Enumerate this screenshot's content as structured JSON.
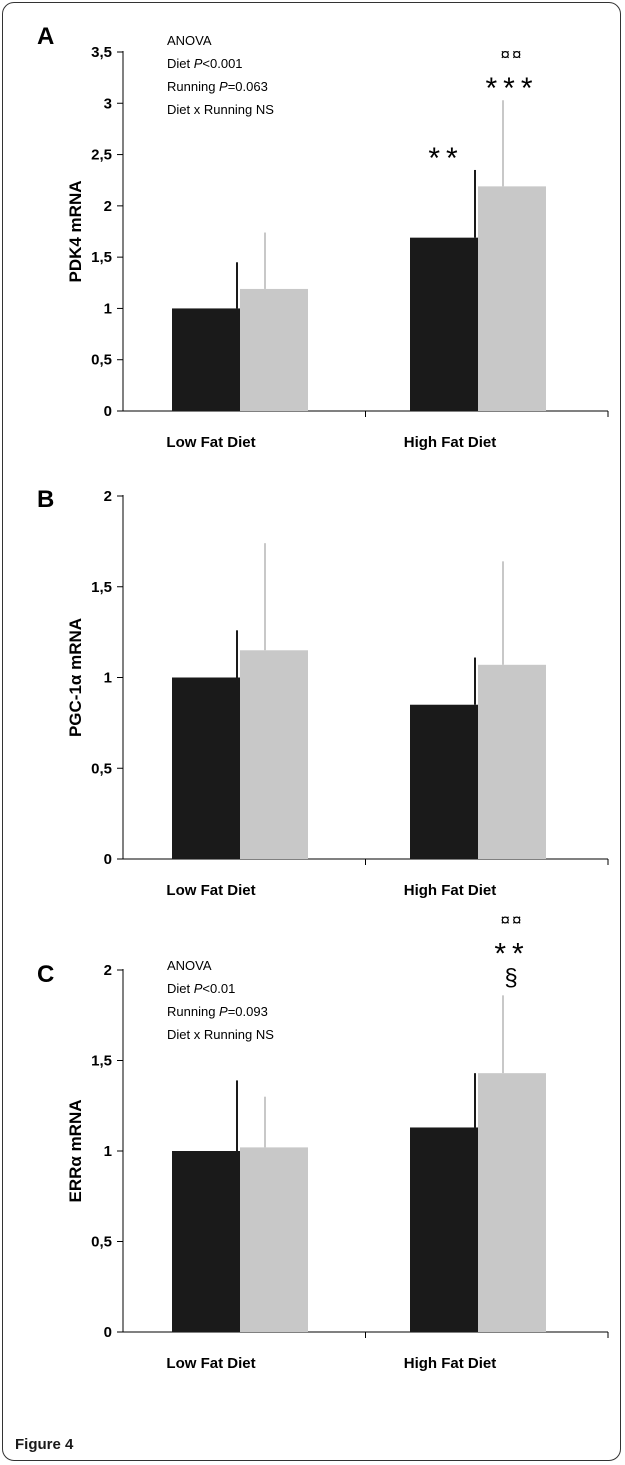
{
  "figure": {
    "caption": "Figure 4",
    "colors": {
      "sedentary_bar": "#1a1a1a",
      "running_bar": "#c8c8c8",
      "axis": "#000000"
    }
  },
  "chart_data": [
    {
      "type": "bar",
      "panel_label": "A",
      "ylabel": "PDK4 mRNA",
      "categories": [
        "Low Fat Diet",
        "High Fat Diet"
      ],
      "ylim": [
        0,
        3.5
      ],
      "yticks": [
        "0",
        "0,5",
        "1",
        "1,5",
        "2",
        "2,5",
        "3",
        "3,5"
      ],
      "series": [
        {
          "color": "#1a1a1a",
          "values": [
            1.0,
            1.69
          ],
          "errors": [
            0.45,
            0.66
          ]
        },
        {
          "color": "#c8c8c8",
          "values": [
            1.19,
            2.19
          ],
          "errors": [
            0.55,
            0.84
          ]
        }
      ],
      "annotation": [
        "ANOVA",
        "Diet P<0.001",
        "Running P=0.063",
        "Diet x Running NS"
      ],
      "significance": [
        {
          "category": 1,
          "series": 0,
          "marks": [
            "**"
          ]
        },
        {
          "category": 1,
          "series": 1,
          "marks": [
            "¤¤",
            "***"
          ]
        }
      ]
    },
    {
      "type": "bar",
      "panel_label": "B",
      "ylabel": "PGC-1α mRNA",
      "categories": [
        "Low Fat Diet",
        "High Fat Diet"
      ],
      "ylim": [
        0,
        2
      ],
      "yticks": [
        "0",
        "0,5",
        "1",
        "1,5",
        "2"
      ],
      "series": [
        {
          "color": "#1a1a1a",
          "values": [
            1.0,
            0.85
          ],
          "errors": [
            0.26,
            0.26
          ]
        },
        {
          "color": "#c8c8c8",
          "values": [
            1.15,
            1.07
          ],
          "errors": [
            0.59,
            0.57
          ]
        }
      ],
      "annotation": [],
      "significance": []
    },
    {
      "type": "bar",
      "panel_label": "C",
      "ylabel": "ERRα mRNA",
      "categories": [
        "Low Fat Diet",
        "High Fat Diet"
      ],
      "ylim": [
        0,
        2
      ],
      "yticks": [
        "0",
        "0,5",
        "1",
        "1,5",
        "2"
      ],
      "series": [
        {
          "color": "#1a1a1a",
          "values": [
            1.0,
            1.13
          ],
          "errors": [
            0.39,
            0.3
          ]
        },
        {
          "color": "#c8c8c8",
          "values": [
            1.02,
            1.43
          ],
          "errors": [
            0.28,
            0.43
          ]
        }
      ],
      "annotation": [
        "ANOVA",
        "Diet P<0.01",
        "Running P=0.093",
        "Diet x Running NS"
      ],
      "significance": [
        {
          "category": 1,
          "series": 1,
          "marks": [
            "¤¤",
            "**",
            "§"
          ]
        }
      ]
    }
  ]
}
